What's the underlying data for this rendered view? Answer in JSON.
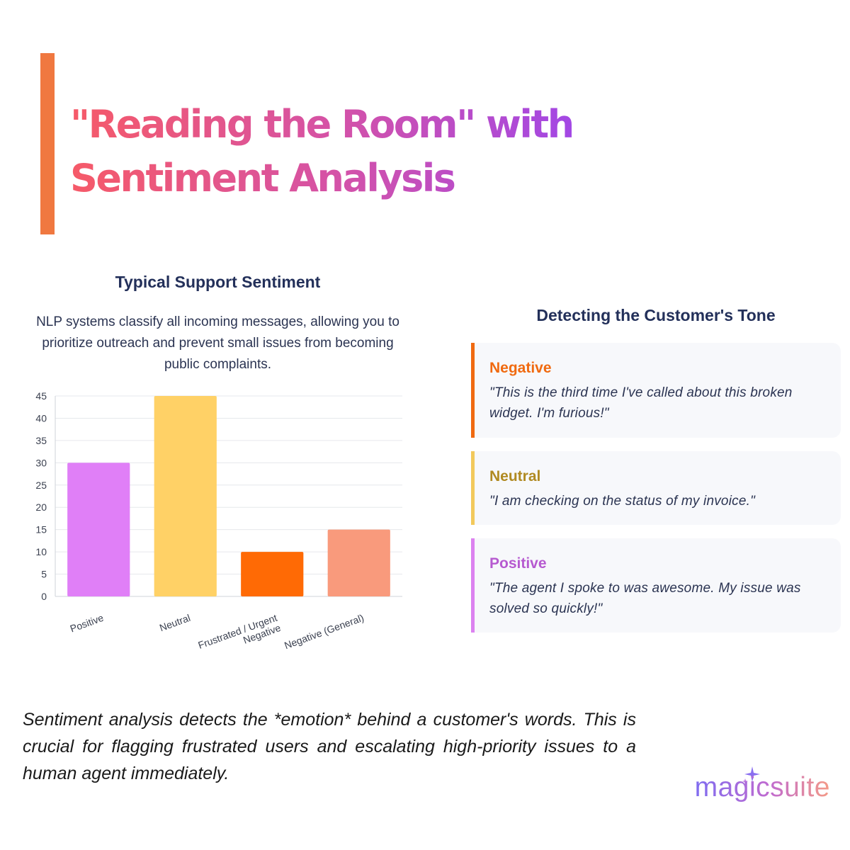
{
  "headline": {
    "line1": "\"Reading the Room\" with",
    "line2": "Sentiment Analysis"
  },
  "chart_panel": {
    "title": "Typical Support Sentiment",
    "description": "NLP systems classify all incoming messages, allowing you to prioritize outreach and prevent small issues from becoming public complaints."
  },
  "chart_data": {
    "type": "bar",
    "title": "Typical Support Sentiment",
    "categories": [
      "Positive",
      "Neutral",
      "Frustrated / Urgent Negative",
      "Negative (General)"
    ],
    "category_lines": [
      [
        "Positive"
      ],
      [
        "Neutral"
      ],
      [
        "Frustrated / Urgent",
        "Negative"
      ],
      [
        "Negative (General)"
      ]
    ],
    "values": [
      30,
      45,
      10,
      15
    ],
    "colors": [
      "#e07ff7",
      "#ffd166",
      "#ff6a05",
      "#f99a7c"
    ],
    "ylim": [
      0,
      45
    ],
    "yticks": [
      0,
      5,
      10,
      15,
      20,
      25,
      30,
      35,
      40,
      45
    ],
    "grid": true,
    "xlabel": "",
    "ylabel": ""
  },
  "tone_panel": {
    "title": "Detecting the Customer's Tone",
    "cards": [
      {
        "label": "Negative",
        "quote": "\"This is the third time I've called about this broken widget. I'm furious!\"",
        "color": "#f06a10",
        "border": "#f06a10"
      },
      {
        "label": "Neutral",
        "quote": "\"I am checking on the status of my invoice.\"",
        "color": "#b08a22",
        "border": "#f2c95c"
      },
      {
        "label": "Positive",
        "quote": "\"The agent I spoke to was awesome. My issue was solved so quickly!\"",
        "color": "#b65ad0",
        "border": "#dc82f0"
      }
    ]
  },
  "caption": "Sentiment analysis detects the *emotion* behind a customer's words. This is crucial for flagging frustrated users and escalating high-priority issues to a human agent immediately.",
  "brand": {
    "name": "magicsuite",
    "icon": "sparkle-icon"
  }
}
